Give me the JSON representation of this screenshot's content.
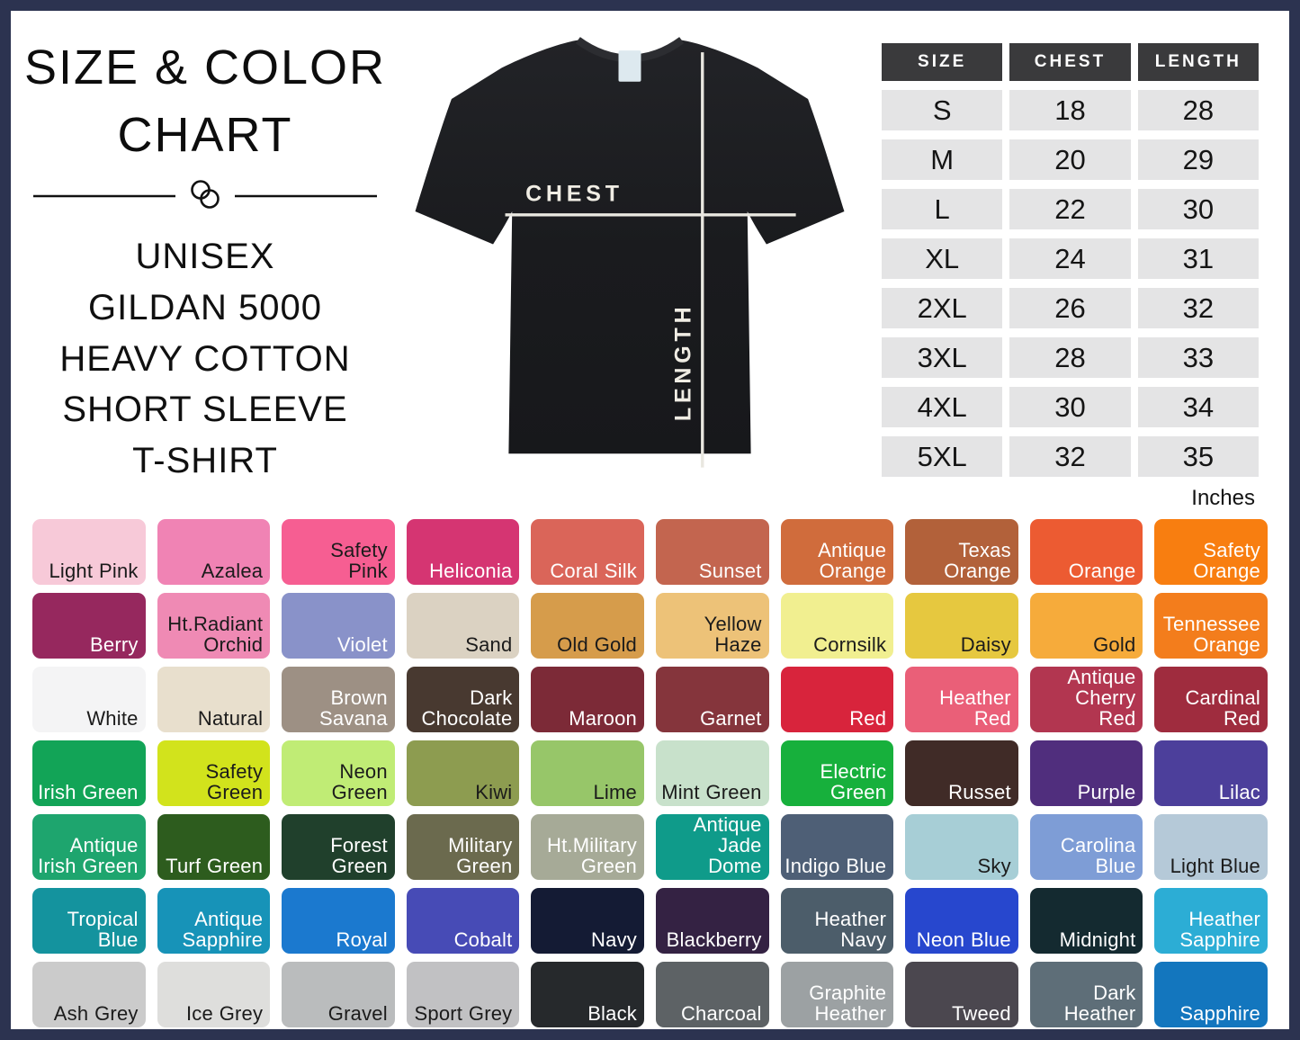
{
  "title": {
    "line1": "SIZE & COLOR",
    "line2": "CHART",
    "subtitle_lines": [
      "UNISEX",
      "GILDAN 5000",
      "HEAVY COTTON",
      "SHORT SLEEVE",
      "T-SHIRT"
    ]
  },
  "shirt": {
    "chest_label": "CHEST",
    "length_label": "LENGTH"
  },
  "size_table": {
    "headers": [
      "SIZE",
      "CHEST",
      "LENGTH"
    ],
    "rows": [
      [
        "S",
        "18",
        "28"
      ],
      [
        "M",
        "20",
        "29"
      ],
      [
        "L",
        "22",
        "30"
      ],
      [
        "XL",
        "24",
        "31"
      ],
      [
        "2XL",
        "26",
        "32"
      ],
      [
        "3XL",
        "28",
        "33"
      ],
      [
        "4XL",
        "30",
        "34"
      ],
      [
        "5XL",
        "32",
        "35"
      ]
    ],
    "unit_note": "Inches",
    "header_bg": "#3a3a3c",
    "cell_bg": "#e4e4e5"
  },
  "frame_border_color": "#2c3350",
  "colors": [
    {
      "name": "Light Pink",
      "hex": "#f7c9d8",
      "text": "dark"
    },
    {
      "name": "Azalea",
      "hex": "#f083b4",
      "text": "dark"
    },
    {
      "name": "Safety Pink",
      "hex": "#f65e92",
      "text": "dark"
    },
    {
      "name": "Heliconia",
      "hex": "#d53572",
      "text": "light"
    },
    {
      "name": "Coral Silk",
      "hex": "#da6559",
      "text": "light"
    },
    {
      "name": "Sunset",
      "hex": "#c3654f",
      "text": "light"
    },
    {
      "name": "Antique Orange",
      "hex": "#d06c3c",
      "text": "light"
    },
    {
      "name": "Texas Orange",
      "hex": "#b2613a",
      "text": "light"
    },
    {
      "name": "Orange",
      "hex": "#ec5b32",
      "text": "light"
    },
    {
      "name": "Safety Orange",
      "hex": "#f87e10",
      "text": "light"
    },
    {
      "name": "Berry",
      "hex": "#96285e",
      "text": "light"
    },
    {
      "name": "Ht.Radiant Orchid",
      "hex": "#ef8ab4",
      "text": "dark"
    },
    {
      "name": "Violet",
      "hex": "#8992c9",
      "text": "light"
    },
    {
      "name": "Sand",
      "hex": "#dbd2c2",
      "text": "dark"
    },
    {
      "name": "Old Gold",
      "hex": "#d69c4b",
      "text": "dark"
    },
    {
      "name": "Yellow Haze",
      "hex": "#edc278",
      "text": "dark"
    },
    {
      "name": "Cornsilk",
      "hex": "#f1ef90",
      "text": "dark"
    },
    {
      "name": "Daisy",
      "hex": "#e6c83f",
      "text": "dark"
    },
    {
      "name": "Gold",
      "hex": "#f6ab3b",
      "text": "dark"
    },
    {
      "name": "Tennessee Orange",
      "hex": "#f37d1c",
      "text": "light"
    },
    {
      "name": "White",
      "hex": "#f4f4f5",
      "text": "dark"
    },
    {
      "name": "Natural",
      "hex": "#e8dfcd",
      "text": "dark"
    },
    {
      "name": "Brown Savana",
      "hex": "#9d9084",
      "text": "light"
    },
    {
      "name": "Dark Chocolate",
      "hex": "#483930",
      "text": "light"
    },
    {
      "name": "Maroon",
      "hex": "#7c2a37",
      "text": "light"
    },
    {
      "name": "Garnet",
      "hex": "#85353c",
      "text": "light"
    },
    {
      "name": "Red",
      "hex": "#d8243c",
      "text": "light"
    },
    {
      "name": "Heather Red",
      "hex": "#ea5f78",
      "text": "light",
      "heather": true
    },
    {
      "name": "Antique Cherry Red",
      "hex": "#b23650",
      "text": "light"
    },
    {
      "name": "Cardinal Red",
      "hex": "#9f2c3e",
      "text": "light"
    },
    {
      "name": "Irish Green",
      "hex": "#12a457",
      "text": "light"
    },
    {
      "name": "Safety Green",
      "hex": "#d2e31c",
      "text": "dark"
    },
    {
      "name": "Neon Green",
      "hex": "#c0ec75",
      "text": "dark"
    },
    {
      "name": "Kiwi",
      "hex": "#8d9c50",
      "text": "dark"
    },
    {
      "name": "Lime",
      "hex": "#97c669",
      "text": "dark"
    },
    {
      "name": "Mint Green",
      "hex": "#c8e1cb",
      "text": "dark"
    },
    {
      "name": "Electric Green",
      "hex": "#17b03c",
      "text": "light"
    },
    {
      "name": "Russet",
      "hex": "#402b27",
      "text": "light"
    },
    {
      "name": "Purple",
      "hex": "#502e7d",
      "text": "light"
    },
    {
      "name": "Lilac",
      "hex": "#4c3f9b",
      "text": "light"
    },
    {
      "name": "Antique Irish Green",
      "hex": "#1ea56e",
      "text": "light"
    },
    {
      "name": "Turf Green",
      "hex": "#2d5c1e",
      "text": "light"
    },
    {
      "name": "Forest Green",
      "hex": "#20402c",
      "text": "light"
    },
    {
      "name": "Military Green",
      "hex": "#6b6a4e",
      "text": "light"
    },
    {
      "name": "Ht.Military Green",
      "hex": "#a6aa97",
      "text": "light",
      "heather": true
    },
    {
      "name": "Antique Jade Dome",
      "hex": "#0f9b8a",
      "text": "light"
    },
    {
      "name": "Indigo Blue",
      "hex": "#4e5f76",
      "text": "light"
    },
    {
      "name": "Sky",
      "hex": "#a7ced6",
      "text": "dark"
    },
    {
      "name": "Carolina Blue",
      "hex": "#7e9dd6",
      "text": "light"
    },
    {
      "name": "Light Blue",
      "hex": "#b5c9d8",
      "text": "dark"
    },
    {
      "name": "Tropical Blue",
      "hex": "#14939e",
      "text": "light"
    },
    {
      "name": "Antique Sapphire",
      "hex": "#1793b8",
      "text": "light"
    },
    {
      "name": "Royal",
      "hex": "#1b79cf",
      "text": "light"
    },
    {
      "name": "Cobalt",
      "hex": "#474bb6",
      "text": "light"
    },
    {
      "name": "Navy",
      "hex": "#141b34",
      "text": "light"
    },
    {
      "name": "Blackberry",
      "hex": "#342243",
      "text": "light"
    },
    {
      "name": "Heather Navy",
      "hex": "#4c5d6a",
      "text": "light",
      "heather": true
    },
    {
      "name": "Neon Blue",
      "hex": "#2747ce",
      "text": "light"
    },
    {
      "name": "Midnight",
      "hex": "#142a30",
      "text": "light"
    },
    {
      "name": "Heather Sapphire",
      "hex": "#2cadd5",
      "text": "light",
      "heather": true
    },
    {
      "name": "Ash Grey",
      "hex": "#cbcbcb",
      "text": "dark",
      "heather": true
    },
    {
      "name": "Ice Grey",
      "hex": "#dededc",
      "text": "dark"
    },
    {
      "name": "Gravel",
      "hex": "#babcbd",
      "text": "dark"
    },
    {
      "name": "Sport Grey",
      "hex": "#c1c1c3",
      "text": "dark",
      "heather": true
    },
    {
      "name": "Black",
      "hex": "#26292c",
      "text": "light"
    },
    {
      "name": "Charcoal",
      "hex": "#5d6265",
      "text": "light"
    },
    {
      "name": "Graphite Heather",
      "hex": "#9ca1a3",
      "text": "light",
      "heather": true
    },
    {
      "name": "Tweed",
      "hex": "#4b474f",
      "text": "light",
      "heather": true
    },
    {
      "name": "Dark Heather",
      "hex": "#5e6e78",
      "text": "light",
      "heather": true
    },
    {
      "name": "Sapphire",
      "hex": "#1376be",
      "text": "light"
    }
  ]
}
